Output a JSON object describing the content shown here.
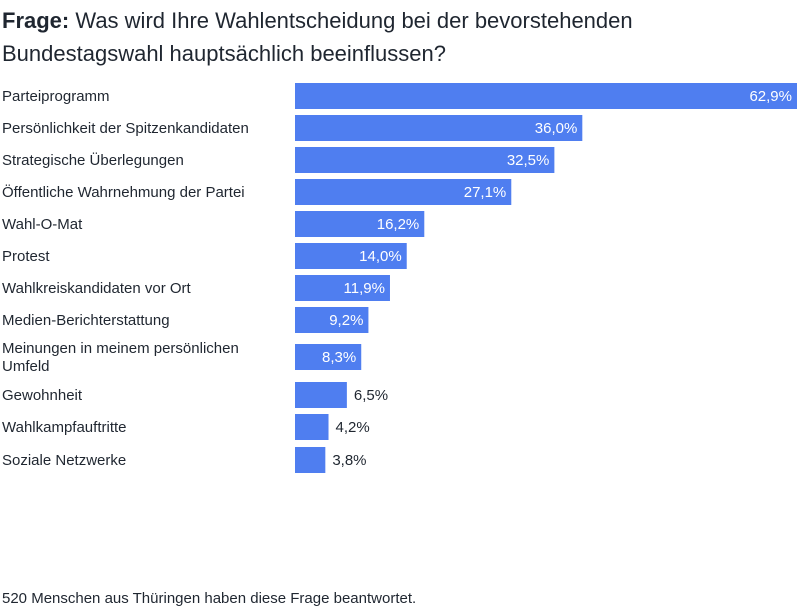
{
  "title": {
    "prefix": "Frage:",
    "text": "Was wird Ihre Wahlentscheidung bei der bevorstehenden Bundestagswahl hauptsächlich beeinflussen?"
  },
  "footer": {
    "note": "520 Menschen aus Thüringen haben diese Frage beantwortet."
  },
  "colors": {
    "bar": "#4f7ef0",
    "label_inside": "#ffffff",
    "label_outside": "#1f2630",
    "text": "#1f2630"
  },
  "chart_data": {
    "type": "bar",
    "orientation": "horizontal",
    "categories": [
      [
        "Parteiprogramm"
      ],
      [
        "Persönlichkeit der Spitzenkandidaten"
      ],
      [
        "Strategische Überlegungen"
      ],
      [
        "Öffentliche Wahrnehmung der Partei"
      ],
      [
        "Wahl-O-Mat"
      ],
      [
        "Protest"
      ],
      [
        "Wahlkreiskandidaten vor Ort"
      ],
      [
        "Medien-Berichterstattung"
      ],
      [
        "Meinungen in meinem persönlichen",
        "Umfeld"
      ],
      [
        "Gewohnheit"
      ],
      [
        "Wahlkampfauftritte"
      ],
      [
        "Soziale Netzwerke"
      ]
    ],
    "values": [
      62.9,
      36.0,
      32.5,
      27.1,
      16.2,
      14.0,
      11.9,
      9.2,
      8.3,
      6.5,
      4.2,
      3.8
    ],
    "value_labels": [
      "62,9%",
      "36,0%",
      "32,5%",
      "27,1%",
      "16,2%",
      "14,0%",
      "11,9%",
      "9,2%",
      "8,3%",
      "6,5%",
      "4,2%",
      "3,8%"
    ],
    "xlim": [
      0,
      62.9
    ],
    "unit": "%",
    "grid": false,
    "legend": "none"
  }
}
